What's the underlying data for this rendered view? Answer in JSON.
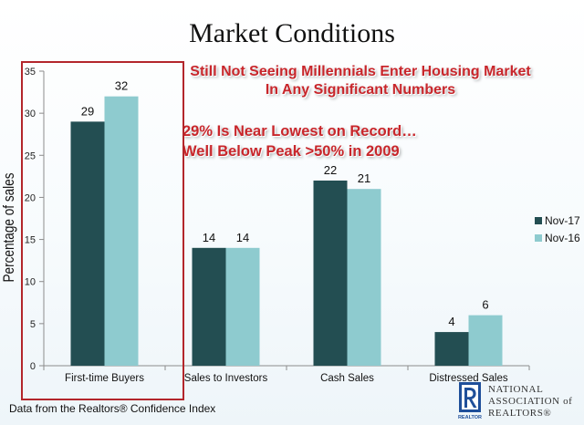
{
  "slide": {
    "title": "Market Conditions",
    "headline1": [
      "Still Not Seeing Millennials Enter Housing Market",
      "In Any Significant Numbers"
    ],
    "headline2": [
      "29% Is Near Lowest on Record…",
      "Well Below Peak >50% in 2009"
    ],
    "source": "Data from the Realtors® Confidence Index",
    "logo_text": [
      "NATIONAL",
      "ASSOCIATION of",
      "REALTORS®"
    ],
    "logo_mark_text": "REALTOR"
  },
  "chart_data": {
    "type": "bar",
    "categories": [
      "First-time Buyers",
      "Sales to Investors",
      "Cash Sales",
      "Distressed Sales"
    ],
    "series": [
      {
        "name": "Nov-17",
        "values": [
          29,
          14,
          22,
          4
        ],
        "color": "#234e52"
      },
      {
        "name": "Nov-16",
        "values": [
          32,
          14,
          21,
          6
        ],
        "color": "#8ecbcf"
      }
    ],
    "ylabel": "Percentage of sales",
    "xlabel": "",
    "ylim": [
      0,
      35
    ],
    "yticks": [
      0,
      5,
      10,
      15,
      20,
      25,
      30,
      35
    ],
    "grid": false,
    "legend": "right",
    "highlight_category": "First-time Buyers",
    "highlight_color": "#b3262b"
  }
}
